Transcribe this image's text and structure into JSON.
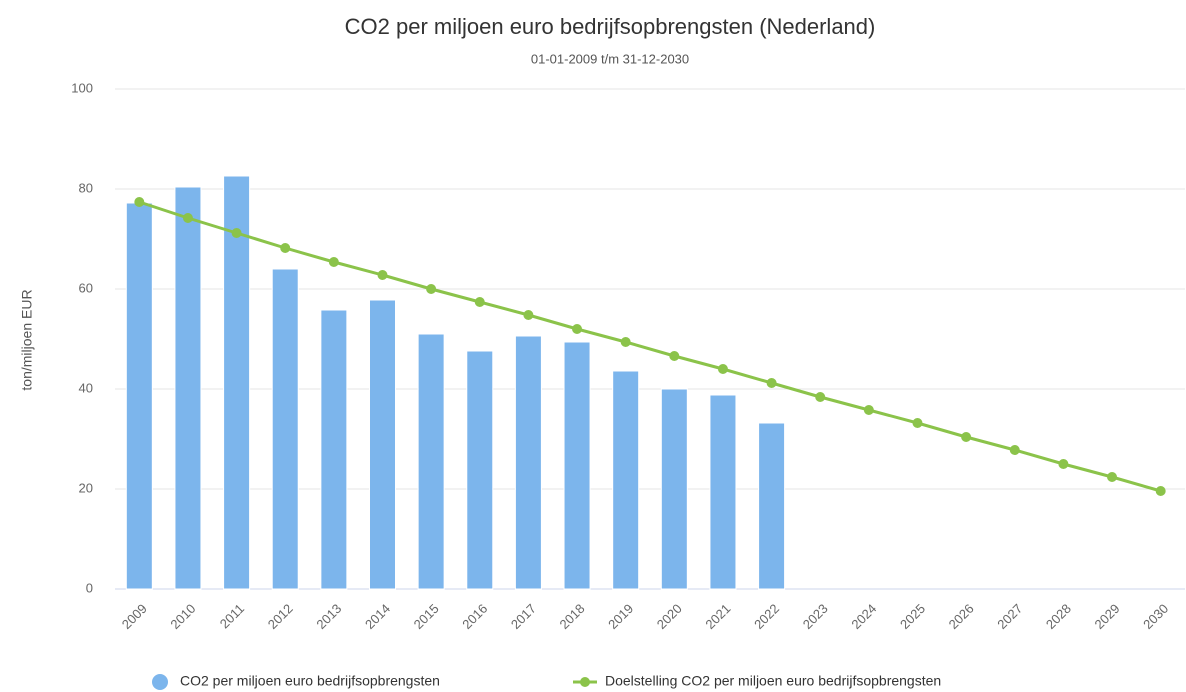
{
  "chart_data": {
    "type": "bar_line",
    "title": "CO2 per miljoen euro bedrijfsopbrengsten (Nederland)",
    "subtitle": "01-01-2009 t/m 31-12-2030",
    "y_label": "ton/miljoen EUR",
    "categories": [
      "2009",
      "2010",
      "2011",
      "2012",
      "2013",
      "2014",
      "2015",
      "2016",
      "2017",
      "2018",
      "2019",
      "2020",
      "2021",
      "2022",
      "2023",
      "2024",
      "2025",
      "2026",
      "2027",
      "2028",
      "2029",
      "2030"
    ],
    "series": [
      {
        "name": "CO2 per miljoen euro bedrijfsopbrengsten",
        "type": "bar",
        "color": "#7cb5ec",
        "values": [
          77.2,
          80.4,
          82.6,
          64.0,
          55.8,
          57.8,
          51.0,
          47.6,
          50.6,
          49.4,
          43.6,
          40.0,
          38.8,
          33.2,
          null,
          null,
          null,
          null,
          null,
          null,
          null,
          null
        ]
      },
      {
        "name": "Doelstelling CO2 per miljoen euro bedrijfsopbrengsten",
        "type": "line",
        "color": "#8bc34a",
        "values": [
          77.4,
          74.2,
          71.2,
          68.2,
          65.4,
          62.8,
          60.0,
          57.4,
          54.8,
          52.0,
          49.4,
          46.6,
          44.0,
          41.2,
          38.4,
          35.8,
          33.2,
          30.4,
          27.8,
          25.0,
          22.4,
          19.6
        ]
      }
    ],
    "ylim": [
      0,
      100
    ],
    "yticks": [
      0,
      20,
      40,
      60,
      80,
      100
    ],
    "grid": true,
    "legend": "bottom"
  }
}
